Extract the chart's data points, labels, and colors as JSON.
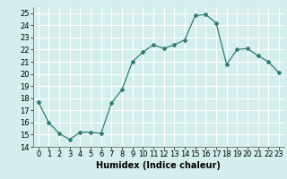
{
  "x": [
    0,
    1,
    2,
    3,
    4,
    5,
    6,
    7,
    8,
    9,
    10,
    11,
    12,
    13,
    14,
    15,
    16,
    17,
    18,
    19,
    20,
    21,
    22,
    23
  ],
  "y": [
    17.7,
    16.0,
    15.1,
    14.6,
    15.2,
    15.2,
    15.1,
    17.6,
    18.7,
    21.0,
    21.8,
    22.4,
    22.1,
    22.4,
    22.8,
    24.8,
    24.9,
    24.2,
    20.8,
    22.0,
    22.1,
    21.5,
    21.0,
    20.1
  ],
  "line_color": "#2e7d6e",
  "marker": "D",
  "markersize": 2.0,
  "linewidth": 0.9,
  "xlabel": "Humidex (Indice chaleur)",
  "ylim": [
    14,
    25.5
  ],
  "yticks": [
    14,
    15,
    16,
    17,
    18,
    19,
    20,
    21,
    22,
    23,
    24,
    25
  ],
  "xlim": [
    -0.5,
    23.5
  ],
  "bg_color": "#d4eeed",
  "grid_color": "#ffffff",
  "xlabel_fontsize": 7.0,
  "tick_fontsize": 6.0
}
